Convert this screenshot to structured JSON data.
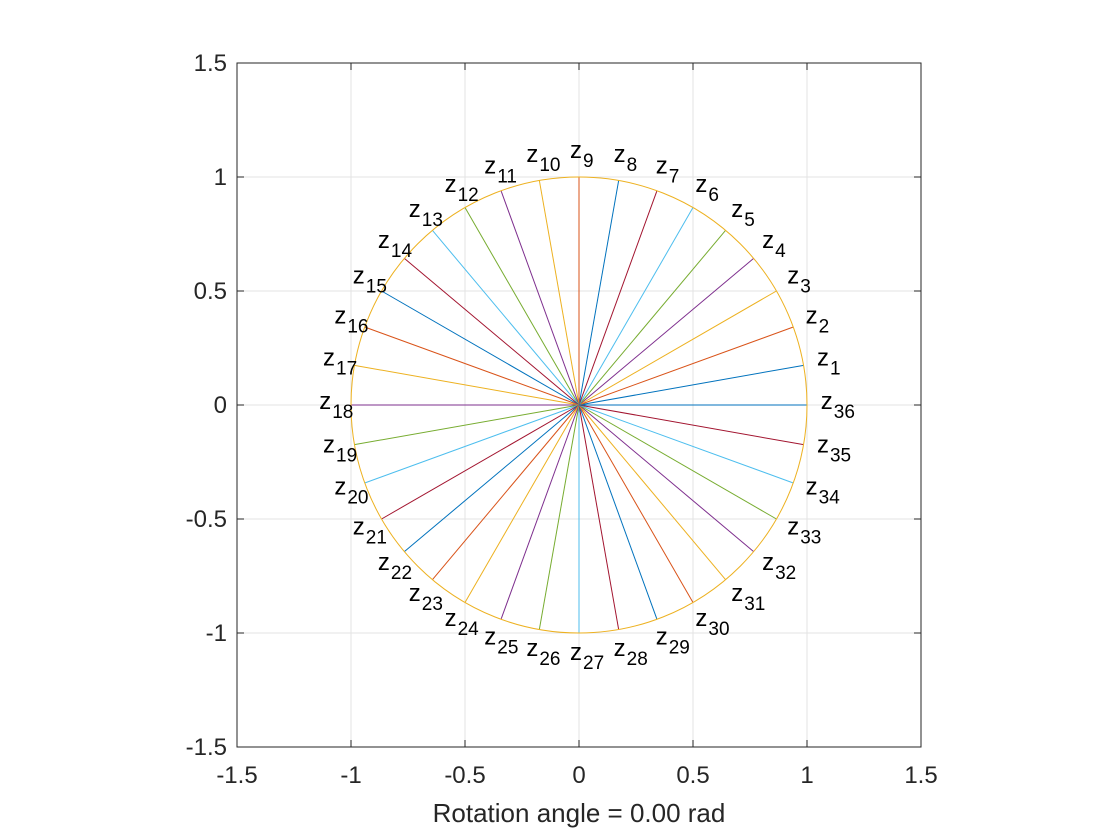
{
  "chart_data": {
    "type": "line",
    "xlabel": "Rotation angle = 0.00 rad",
    "xlim": [
      -1.5,
      1.5
    ],
    "ylim": [
      -1.5,
      1.5
    ],
    "xticks": [
      -1.5,
      -1,
      -0.5,
      0,
      0.5,
      1,
      1.5
    ],
    "yticks": [
      -1.5,
      -1,
      -0.5,
      0,
      0.5,
      1,
      1.5
    ],
    "xtick_labels": [
      "-1.5",
      "-1",
      "-0.5",
      "0",
      "0.5",
      "1",
      "1.5"
    ],
    "ytick_labels": [
      "-1.5",
      "-1",
      "-0.5",
      "0",
      "0.5",
      "1",
      "1.5"
    ],
    "grid": true,
    "rotation_angle_rad": 0.0,
    "unit_circle": {
      "radius": 1,
      "color": "#EDB120"
    },
    "series_colors": [
      "#0072BD",
      "#D95319",
      "#EDB120",
      "#7E2F8E",
      "#77AC30",
      "#4DBEEE",
      "#A2142F"
    ],
    "series": [
      {
        "label": "z",
        "sub": "1",
        "x": 0.985,
        "y": 0.174
      },
      {
        "label": "z",
        "sub": "2",
        "x": 0.94,
        "y": 0.342
      },
      {
        "label": "z",
        "sub": "3",
        "x": 0.866,
        "y": 0.5
      },
      {
        "label": "z",
        "sub": "4",
        "x": 0.766,
        "y": 0.643
      },
      {
        "label": "z",
        "sub": "5",
        "x": 0.643,
        "y": 0.766
      },
      {
        "label": "z",
        "sub": "6",
        "x": 0.5,
        "y": 0.866
      },
      {
        "label": "z",
        "sub": "7",
        "x": 0.342,
        "y": 0.94
      },
      {
        "label": "z",
        "sub": "8",
        "x": 0.174,
        "y": 0.985
      },
      {
        "label": "z",
        "sub": "9",
        "x": 0.0,
        "y": 1.0
      },
      {
        "label": "z",
        "sub": "10",
        "x": -0.174,
        "y": 0.985
      },
      {
        "label": "z",
        "sub": "11",
        "x": -0.342,
        "y": 0.94
      },
      {
        "label": "z",
        "sub": "12",
        "x": -0.5,
        "y": 0.866
      },
      {
        "label": "z",
        "sub": "13",
        "x": -0.643,
        "y": 0.766
      },
      {
        "label": "z",
        "sub": "14",
        "x": -0.766,
        "y": 0.643
      },
      {
        "label": "z",
        "sub": "15",
        "x": -0.866,
        "y": 0.5
      },
      {
        "label": "z",
        "sub": "16",
        "x": -0.94,
        "y": 0.342
      },
      {
        "label": "z",
        "sub": "17",
        "x": -0.985,
        "y": 0.174
      },
      {
        "label": "z",
        "sub": "18",
        "x": -1.0,
        "y": 0.0
      },
      {
        "label": "z",
        "sub": "19",
        "x": -0.985,
        "y": -0.174
      },
      {
        "label": "z",
        "sub": "20",
        "x": -0.94,
        "y": -0.342
      },
      {
        "label": "z",
        "sub": "21",
        "x": -0.866,
        "y": -0.5
      },
      {
        "label": "z",
        "sub": "22",
        "x": -0.766,
        "y": -0.643
      },
      {
        "label": "z",
        "sub": "23",
        "x": -0.643,
        "y": -0.766
      },
      {
        "label": "z",
        "sub": "24",
        "x": -0.5,
        "y": -0.866
      },
      {
        "label": "z",
        "sub": "25",
        "x": -0.342,
        "y": -0.94
      },
      {
        "label": "z",
        "sub": "26",
        "x": -0.174,
        "y": -0.985
      },
      {
        "label": "z",
        "sub": "27",
        "x": 0.0,
        "y": -1.0
      },
      {
        "label": "z",
        "sub": "28",
        "x": 0.174,
        "y": -0.985
      },
      {
        "label": "z",
        "sub": "29",
        "x": 0.342,
        "y": -0.94
      },
      {
        "label": "z",
        "sub": "30",
        "x": 0.5,
        "y": -0.866
      },
      {
        "label": "z",
        "sub": "31",
        "x": 0.643,
        "y": -0.766
      },
      {
        "label": "z",
        "sub": "32",
        "x": 0.766,
        "y": -0.643
      },
      {
        "label": "z",
        "sub": "33",
        "x": 0.866,
        "y": -0.5
      },
      {
        "label": "z",
        "sub": "34",
        "x": 0.94,
        "y": -0.342
      },
      {
        "label": "z",
        "sub": "35",
        "x": 0.985,
        "y": -0.174
      },
      {
        "label": "z",
        "sub": "36",
        "x": 1.0,
        "y": 0.0
      }
    ]
  }
}
